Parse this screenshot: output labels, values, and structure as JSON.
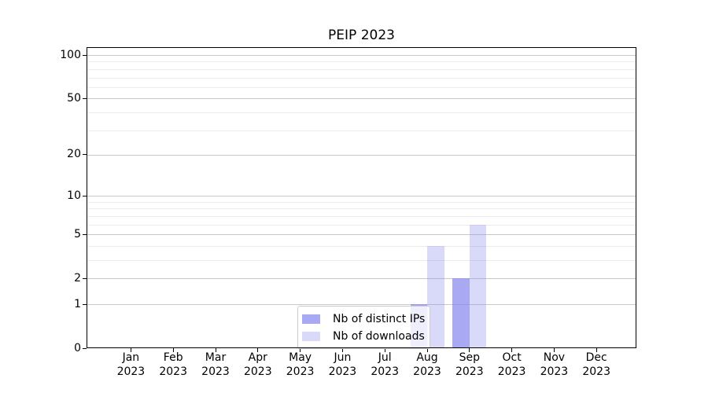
{
  "title": "PEIP 2023",
  "chart_data": {
    "type": "bar",
    "title": "PEIP 2023",
    "categories": [
      "Jan 2023",
      "Feb 2023",
      "Mar 2023",
      "Apr 2023",
      "May 2023",
      "Jun 2023",
      "Jul 2023",
      "Aug 2023",
      "Sep 2023",
      "Oct 2023",
      "Nov 2023",
      "Dec 2023"
    ],
    "series": [
      {
        "name": "Nb of distinct IPs",
        "color": "rgba(136,136,238,0.72)",
        "values": [
          0,
          0,
          0,
          0,
          0,
          0,
          0,
          1,
          2,
          0,
          0,
          0
        ]
      },
      {
        "name": "Nb of downloads",
        "color": "rgba(136,136,238,0.32)",
        "values": [
          0,
          0,
          0,
          0,
          0,
          0,
          0,
          4,
          6,
          0,
          0,
          0
        ]
      }
    ],
    "xlabel": "",
    "ylabel": "",
    "yscale": "log1p",
    "ylim": [
      0,
      100
    ],
    "yticks": [
      0,
      1,
      2,
      5,
      10,
      20,
      50,
      100
    ],
    "minor_yticks": [
      3,
      4,
      6,
      7,
      8,
      9,
      30,
      40,
      60,
      70,
      80,
      90
    ],
    "grid": "on",
    "legend_position": "lower center"
  },
  "colors": {
    "background": "#ffffff",
    "bar_base": "#8888ee",
    "major_grid": "#c9c9c9",
    "minor_grid": "#ebebeb",
    "axis": "#000000",
    "legend_border": "#cccccc"
  }
}
